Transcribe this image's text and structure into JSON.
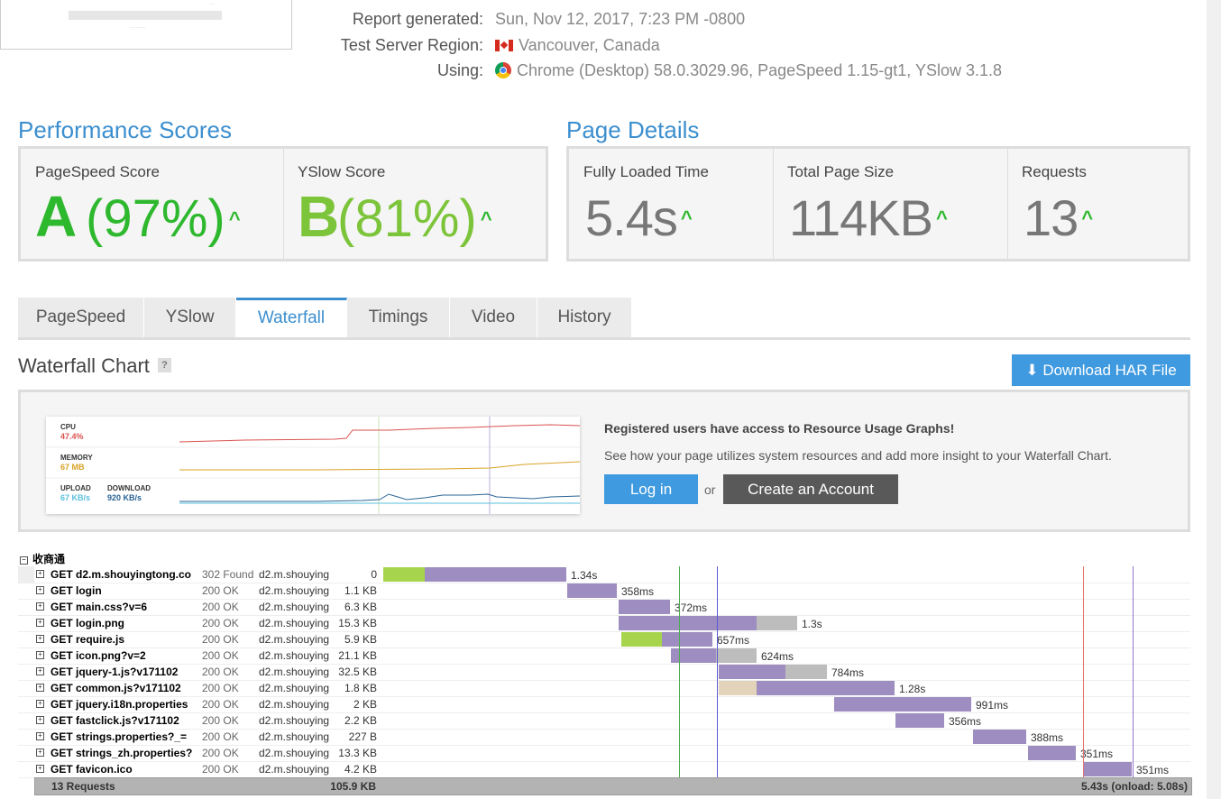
{
  "report": {
    "generated_label": "Report generated:",
    "generated_value": "Sun, Nov 12, 2017, 7:23 PM -0800",
    "region_label": "Test Server Region:",
    "region_value": "Vancouver, Canada",
    "using_label": "Using:",
    "using_value": "Chrome (Desktop) 58.0.3029.96, PageSpeed 1.15-gt1, YSlow 3.1.8"
  },
  "performance": {
    "heading": "Performance Scores",
    "pagespeed": {
      "label": "PageSpeed Score",
      "grade": "A",
      "percent": "(97%)"
    },
    "yslow": {
      "label": "YSlow Score",
      "grade": "B",
      "percent": "(81%)"
    }
  },
  "details": {
    "heading": "Page Details",
    "load_time": {
      "label": "Fully Loaded Time",
      "value": "5.4s"
    },
    "page_size": {
      "label": "Total Page Size",
      "value": "114KB"
    },
    "requests": {
      "label": "Requests",
      "value": "13"
    }
  },
  "tabs": [
    "PageSpeed",
    "YSlow",
    "Waterfall",
    "Timings",
    "Video",
    "History"
  ],
  "active_tab": "Waterfall",
  "waterfall": {
    "title": "Waterfall Chart",
    "help": "?",
    "download_label": "Download HAR File",
    "resource": {
      "cpu_label": "CPU",
      "cpu_value": "47.4%",
      "memory_label": "MEMORY",
      "memory_value": "67 MB",
      "upload_label": "UPLOAD",
      "upload_value": "67 KB/s",
      "download_label": "DOWNLOAD",
      "download_value": "920 KB/s",
      "heading": "Registered users have access to Resource Usage Graphs!",
      "text": "See how your page utilizes system resources and add more insight to your Waterfall Chart.",
      "login_label": "Log in",
      "or_label": "or",
      "create_label": "Create an Account"
    },
    "site_name": "收商通",
    "rows": [
      {
        "name": "GET d2.m.shouyingtong.co",
        "status": "302 Found",
        "domain": "d2.m.shouying",
        "size": "0",
        "time": "1.34s"
      },
      {
        "name": "GET login",
        "status": "200 OK",
        "domain": "d2.m.shouying",
        "size": "1.1 KB",
        "time": "358ms"
      },
      {
        "name": "GET main.css?v=6",
        "status": "200 OK",
        "domain": "d2.m.shouying",
        "size": "6.3 KB",
        "time": "372ms"
      },
      {
        "name": "GET login.png",
        "status": "200 OK",
        "domain": "d2.m.shouying",
        "size": "15.3 KB",
        "time": "1.3s"
      },
      {
        "name": "GET require.js",
        "status": "200 OK",
        "domain": "d2.m.shouying",
        "size": "5.9 KB",
        "time": "657ms"
      },
      {
        "name": "GET icon.png?v=2",
        "status": "200 OK",
        "domain": "d2.m.shouying",
        "size": "21.1 KB",
        "time": "624ms"
      },
      {
        "name": "GET jquery-1.js?v171102",
        "status": "200 OK",
        "domain": "d2.m.shouying",
        "size": "32.5 KB",
        "time": "784ms"
      },
      {
        "name": "GET common.js?v171102",
        "status": "200 OK",
        "domain": "d2.m.shouying",
        "size": "1.8 KB",
        "time": "1.28s"
      },
      {
        "name": "GET jquery.i18n.properties",
        "status": "200 OK",
        "domain": "d2.m.shouying",
        "size": "2 KB",
        "time": "991ms"
      },
      {
        "name": "GET fastclick.js?v171102",
        "status": "200 OK",
        "domain": "d2.m.shouying",
        "size": "2.2 KB",
        "time": "356ms"
      },
      {
        "name": "GET strings.properties?_=",
        "status": "200 OK",
        "domain": "d2.m.shouying",
        "size": "227 B",
        "time": "388ms"
      },
      {
        "name": "GET strings_zh.properties?",
        "status": "200 OK",
        "domain": "d2.m.shouying",
        "size": "13.3 KB",
        "time": "351ms"
      },
      {
        "name": "GET favicon.ico",
        "status": "200 OK",
        "domain": "d2.m.shouying",
        "size": "4.2 KB",
        "time": "351ms"
      }
    ],
    "footer": {
      "requests": "13 Requests",
      "size": "105.9 KB",
      "total": "5.43s (onload: 5.08s)"
    }
  },
  "colors": {
    "accent": "#3c8fcf",
    "good": "#2eb82e",
    "bar_wait": "#9e8dc0",
    "bar_connect": "#a6d44c",
    "bar_receive": "#bdbdbd",
    "bar_blocked": "#e3d3bb"
  }
}
